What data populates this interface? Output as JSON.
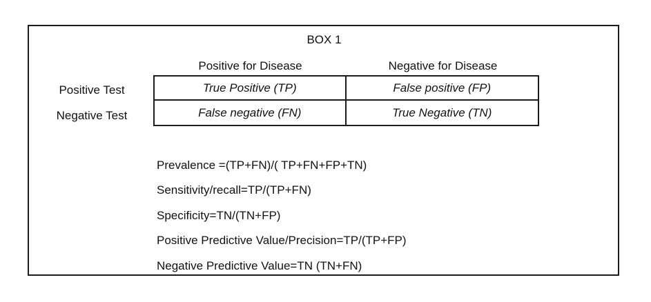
{
  "box": {
    "title": "BOX 1"
  },
  "matrix": {
    "col_headers": [
      "Positive for Disease",
      "Negative for Disease"
    ],
    "row_labels": [
      "Positive Test",
      "Negative Test"
    ],
    "cells": [
      [
        "True Positive (TP)",
        "False positive (FP)"
      ],
      [
        "False negative (FN)",
        "True Negative (TN)"
      ]
    ]
  },
  "formulas": [
    "Prevalence =(TP+FN)/( TP+FN+FP+TN)",
    "Sensitivity/recall=TP/(TP+FN)",
    "Specificity=TN/(TN+FP)",
    "Positive Predictive Value/Precision=TP/(TP+FP)",
    "Negative Predictive Value=TN (TN+FN)"
  ]
}
